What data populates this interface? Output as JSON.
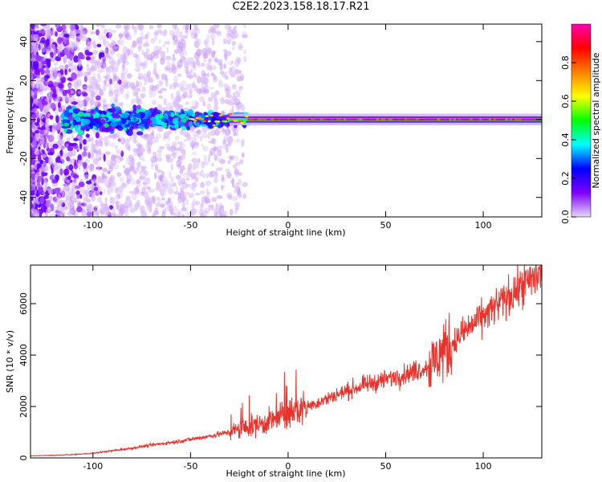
{
  "title": "C2E2.2023.158.18.17.R21",
  "chart_data": [
    {
      "type": "heatmap",
      "xlabel": "Height of straight line (km)",
      "ylabel": "Frequency (Hz)",
      "xlim": [
        -132,
        130
      ],
      "ylim": [
        -50,
        49
      ],
      "xticks": [
        -100,
        -50,
        0,
        50,
        100
      ],
      "yticks": [
        -40,
        -20,
        0,
        20,
        40
      ],
      "colorbar": {
        "label": "Normalized spectral amplitude",
        "range": [
          0,
          1
        ],
        "ticks": [
          0.0,
          0.2,
          0.4,
          0.6,
          0.8
        ],
        "tick_labels": [
          "0.0",
          "0.2",
          "0.4",
          "0.6",
          "0.8"
        ],
        "colors": [
          "#e6d7f5",
          "#7f00ff",
          "#0000ff",
          "#00ffff",
          "#00ff00",
          "#ffff00",
          "#ff8000",
          "#ff0000",
          "#ff00b0"
        ]
      },
      "signal_line": {
        "frequency": 0,
        "from_height": -50,
        "to_height": 130
      }
    },
    {
      "type": "line",
      "xlabel": "Height of straight line (km)",
      "ylabel": "SNR (10 * v/v)",
      "xlim": [
        -132,
        130
      ],
      "ylim": [
        0,
        7500
      ],
      "xticks": [
        -100,
        -50,
        0,
        50,
        100
      ],
      "yticks": [
        0,
        2000,
        4000,
        6000
      ],
      "color": "#e8322b",
      "series": [
        {
          "x": [
            -132,
            -120,
            -110,
            -100,
            -90,
            -80,
            -70,
            -60,
            -50,
            -40,
            -30,
            -20,
            -10,
            0,
            10,
            20,
            30,
            40,
            50,
            60,
            70,
            75,
            77,
            80,
            85,
            90,
            100,
            110,
            120,
            130
          ],
          "values": [
            80,
            100,
            130,
            180,
            280,
            380,
            500,
            600,
            720,
            850,
            1000,
            1200,
            1400,
            1700,
            2000,
            2300,
            2600,
            2850,
            3050,
            3250,
            3500,
            3700,
            4000,
            4200,
            4500,
            4900,
            5500,
            6100,
            6700,
            7200
          ]
        }
      ]
    }
  ]
}
